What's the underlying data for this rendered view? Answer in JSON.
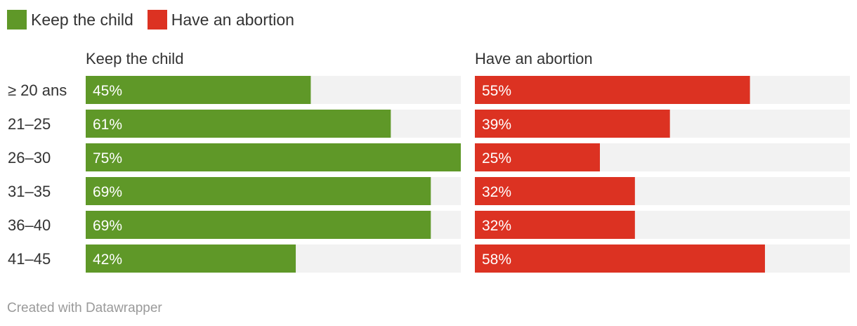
{
  "legend": [
    {
      "label": "Keep the child",
      "color": "#5f9828"
    },
    {
      "label": "Have an abortion",
      "color": "#dc3222"
    }
  ],
  "chart_data": {
    "type": "bar",
    "orientation": "horizontal",
    "max_value": 75,
    "categories": [
      "≥ 20 ans",
      "21–25",
      "26–30",
      "31–35",
      "36–40",
      "41–45"
    ],
    "series": [
      {
        "name": "Keep the child",
        "color": "#5f9828",
        "values": [
          45,
          61,
          75,
          69,
          69,
          42
        ],
        "labels": [
          "45%",
          "61%",
          "75%",
          "69%",
          "69%",
          "42%"
        ]
      },
      {
        "name": "Have an abortion",
        "color": "#dc3222",
        "values": [
          55,
          39,
          25,
          32,
          32,
          58
        ],
        "labels": [
          "55%",
          "39%",
          "25%",
          "32%",
          "32%",
          "58%"
        ]
      }
    ]
  },
  "footer": "Created with Datawrapper"
}
